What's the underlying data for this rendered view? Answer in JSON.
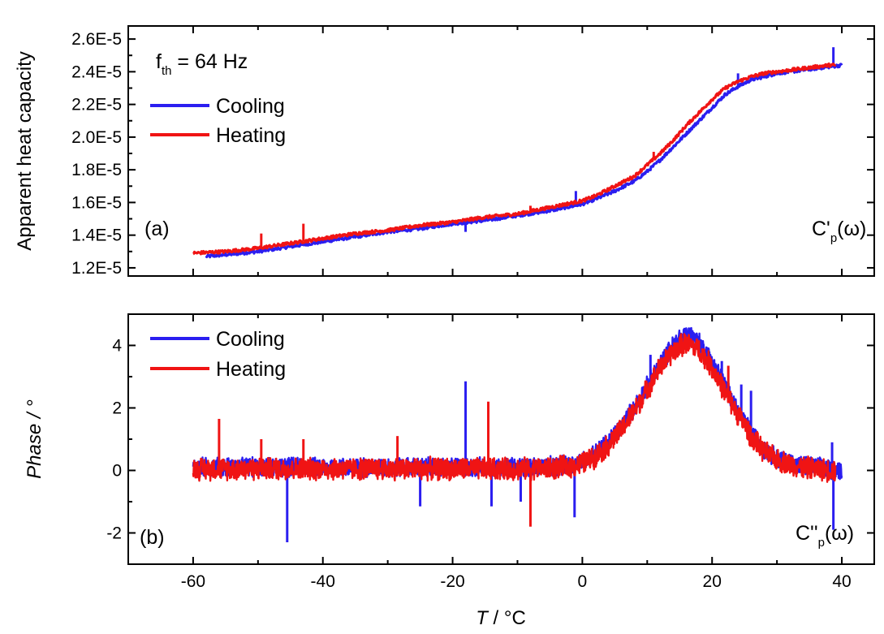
{
  "chart_data": [
    {
      "type": "line",
      "panel_label": "(a)",
      "ylabel": "Apparent heat capacity",
      "xlim": [
        -70,
        45
      ],
      "ylim": [
        1.15e-05,
        2.68e-05
      ],
      "yticks": [
        1.2e-05,
        1.4e-05,
        1.6e-05,
        1.8e-05,
        2e-05,
        2.2e-05,
        2.4e-05,
        2.6e-05
      ],
      "ytick_labels": [
        "1.2E-5",
        "1.4E-5",
        "1.6E-5",
        "1.8E-5",
        "2.0E-5",
        "2.2E-5",
        "2.4E-5",
        "2.6E-5"
      ],
      "annotation_main": "f",
      "annotation_sub": "th",
      "annotation_rest": " = 64 Hz",
      "corner_main": "C'",
      "corner_sub": "p",
      "corner_rest": "(ω)",
      "legend_position": "top-left",
      "series": [
        {
          "name": "Cooling",
          "color": "#2b1ef0",
          "x": [
            -58,
            -55,
            -50,
            -45,
            -40,
            -35,
            -30,
            -25,
            -20,
            -15,
            -10,
            -5,
            0,
            2,
            5,
            8,
            10,
            12,
            14,
            16,
            18,
            20,
            22,
            24,
            26,
            28,
            30,
            32,
            34,
            36,
            38,
            40
          ],
          "y": [
            1.27e-05,
            1.28e-05,
            1.3e-05,
            1.33e-05,
            1.36e-05,
            1.39e-05,
            1.42e-05,
            1.44e-05,
            1.47e-05,
            1.49e-05,
            1.52e-05,
            1.55e-05,
            1.59e-05,
            1.62e-05,
            1.67e-05,
            1.73e-05,
            1.79e-05,
            1.86e-05,
            1.94e-05,
            2.02e-05,
            2.1e-05,
            2.18e-05,
            2.26e-05,
            2.31e-05,
            2.35e-05,
            2.37e-05,
            2.39e-05,
            2.4e-05,
            2.41e-05,
            2.42e-05,
            2.43e-05,
            2.44e-05
          ],
          "spikes": [
            [
              -18,
              1.42e-05
            ],
            [
              -1,
              1.67e-05
            ],
            [
              24,
              2.39e-05
            ],
            [
              38.7,
              2.55e-05
            ]
          ]
        },
        {
          "name": "Heating",
          "color": "#f01414",
          "x": [
            -60,
            -55,
            -50,
            -45,
            -40,
            -35,
            -30,
            -25,
            -20,
            -15,
            -10,
            -5,
            0,
            2,
            5,
            8,
            10,
            12,
            14,
            16,
            18,
            20,
            22,
            24,
            26,
            28,
            30,
            32,
            34,
            36,
            38,
            39
          ],
          "y": [
            1.29e-05,
            1.3e-05,
            1.32e-05,
            1.35e-05,
            1.38e-05,
            1.41e-05,
            1.43e-05,
            1.46e-05,
            1.48e-05,
            1.51e-05,
            1.53e-05,
            1.57e-05,
            1.61e-05,
            1.64e-05,
            1.7e-05,
            1.76e-05,
            1.83e-05,
            1.9e-05,
            1.98e-05,
            2.07e-05,
            2.15e-05,
            2.23e-05,
            2.3e-05,
            2.34e-05,
            2.37e-05,
            2.39e-05,
            2.4e-05,
            2.41e-05,
            2.42e-05,
            2.43e-05,
            2.44e-05,
            2.44e-05
          ],
          "spikes": [
            [
              -49.5,
              1.41e-05
            ],
            [
              -43,
              1.47e-05
            ],
            [
              -8,
              1.58e-05
            ],
            [
              11,
              1.91e-05
            ],
            [
              18,
              2.15e-05
            ]
          ]
        }
      ]
    },
    {
      "type": "line",
      "panel_label": "(b)",
      "ylabel": "Phase / °",
      "xlabel_main": "T",
      "xlabel_rest": " / °C",
      "xlim": [
        -70,
        45
      ],
      "ylim": [
        -3,
        5
      ],
      "xticks": [
        -60,
        -40,
        -20,
        0,
        20,
        40
      ],
      "xtick_labels": [
        "-60",
        "-40",
        "-20",
        "0",
        "20",
        "40"
      ],
      "yticks": [
        -2,
        0,
        2,
        4
      ],
      "ytick_labels": [
        "-2",
        "0",
        "2",
        "4"
      ],
      "corner_main": "C''",
      "corner_sub": "p",
      "corner_rest": "(ω)",
      "legend_position": "top-left",
      "series": [
        {
          "name": "Cooling",
          "color": "#2b1ef0",
          "x": [
            -60,
            -50,
            -40,
            -30,
            -20,
            -10,
            -5,
            -2,
            0,
            2,
            4,
            6,
            8,
            10,
            12,
            14,
            15,
            16,
            17,
            18,
            20,
            22,
            24,
            26,
            28,
            30,
            32,
            34,
            36,
            38,
            40
          ],
          "y": [
            0.1,
            0.1,
            0.1,
            0.1,
            0.1,
            0.1,
            0.12,
            0.18,
            0.3,
            0.55,
            0.9,
            1.4,
            2.0,
            2.7,
            3.4,
            4.0,
            4.25,
            4.35,
            4.3,
            4.1,
            3.5,
            2.7,
            1.9,
            1.2,
            0.7,
            0.4,
            0.25,
            0.15,
            0.1,
            0.05,
            0.0
          ],
          "noise": 0.35,
          "spikes": [
            [
              -45.5,
              -2.3
            ],
            [
              -25,
              -1.15
            ],
            [
              -18,
              2.85
            ],
            [
              -14,
              -1.15
            ],
            [
              -9.5,
              -1.0
            ],
            [
              -1.2,
              -1.5
            ],
            [
              10.5,
              3.7
            ],
            [
              21.5,
              3.5
            ],
            [
              24.5,
              2.75
            ],
            [
              26,
              2.55
            ],
            [
              38.5,
              0.9
            ],
            [
              38.7,
              -1.9
            ]
          ]
        },
        {
          "name": "Heating",
          "color": "#f01414",
          "x": [
            -60,
            -50,
            -40,
            -30,
            -20,
            -10,
            -5,
            -2,
            0,
            2,
            4,
            6,
            8,
            10,
            12,
            14,
            15,
            16,
            17,
            18,
            20,
            22,
            24,
            26,
            28,
            30,
            32,
            34,
            36,
            38,
            39
          ],
          "y": [
            0.05,
            0.05,
            0.05,
            0.05,
            0.05,
            0.05,
            0.07,
            0.12,
            0.22,
            0.45,
            0.8,
            1.3,
            1.9,
            2.6,
            3.3,
            3.8,
            4.0,
            4.05,
            4.0,
            3.85,
            3.3,
            2.5,
            1.8,
            1.1,
            0.6,
            0.35,
            0.2,
            0.1,
            0.05,
            0.0,
            0.0
          ],
          "noise": 0.4,
          "spikes": [
            [
              -56,
              1.65
            ],
            [
              -49.5,
              1.0
            ],
            [
              -43,
              1.0
            ],
            [
              -28.5,
              1.1
            ],
            [
              -14.5,
              2.2
            ],
            [
              -8,
              -1.8
            ],
            [
              22.5,
              3.35
            ]
          ]
        }
      ]
    }
  ]
}
